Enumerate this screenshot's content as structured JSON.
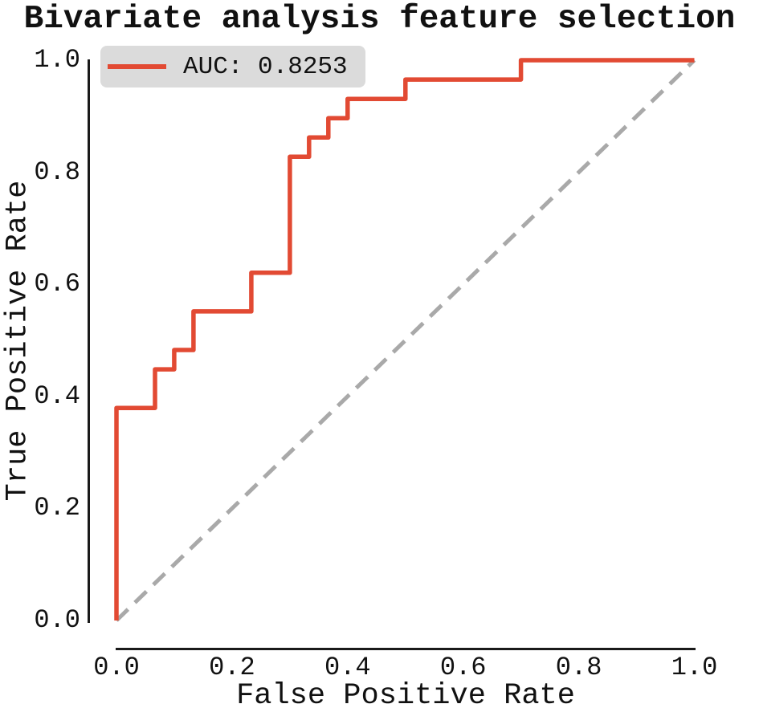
{
  "figure": {
    "title": "Bivariate analysis feature selection"
  },
  "legend": {
    "label": "AUC: 0.8253",
    "position": "upper left"
  },
  "axes": {
    "x_label": "False Positive Rate",
    "y_label": "True Positive Rate"
  },
  "colors": {
    "roc_line": "#E24A33",
    "diagonal_line": "#A9A9A9",
    "legend_bg": "#DBDBDB",
    "text": "#111111",
    "spine": "#1A1A1A"
  },
  "chart_data": {
    "type": "line",
    "title": "Bivariate analysis feature selection",
    "xlabel": "False Positive Rate",
    "ylabel": "True Positive Rate",
    "xlim": [
      0.0,
      1.0
    ],
    "ylim": [
      0.0,
      1.0
    ],
    "x_tick_labels": [
      "0.0",
      "0.2",
      "0.4",
      "0.6",
      "0.8",
      "1.0"
    ],
    "y_tick_labels": [
      "0.0",
      "0.2",
      "0.4",
      "0.6",
      "0.8",
      "1.0"
    ],
    "grid": false,
    "legend_position": "upper left",
    "series": [
      {
        "name": "roc-curve",
        "legend_label": "AUC: 0.8253",
        "auc": 0.8253,
        "color": "#E24A33",
        "style": "solid",
        "x": [
          0.0,
          0.0,
          0.0667,
          0.0667,
          0.1,
          0.1,
          0.1333,
          0.1333,
          0.2333,
          0.2333,
          0.3,
          0.3,
          0.3333,
          0.3333,
          0.3667,
          0.3667,
          0.4,
          0.4,
          0.5,
          0.5,
          0.7,
          0.7,
          1.0
        ],
        "y": [
          0.0,
          0.3793,
          0.3793,
          0.4483,
          0.4483,
          0.4828,
          0.4828,
          0.5517,
          0.5517,
          0.6207,
          0.6207,
          0.8276,
          0.8276,
          0.8621,
          0.8621,
          0.8966,
          0.8966,
          0.931,
          0.931,
          0.9655,
          0.9655,
          1.0,
          1.0
        ]
      },
      {
        "name": "chance-diagonal",
        "color": "#A9A9A9",
        "style": "dashed",
        "x": [
          0.0,
          1.0
        ],
        "y": [
          0.0,
          1.0
        ]
      }
    ]
  }
}
